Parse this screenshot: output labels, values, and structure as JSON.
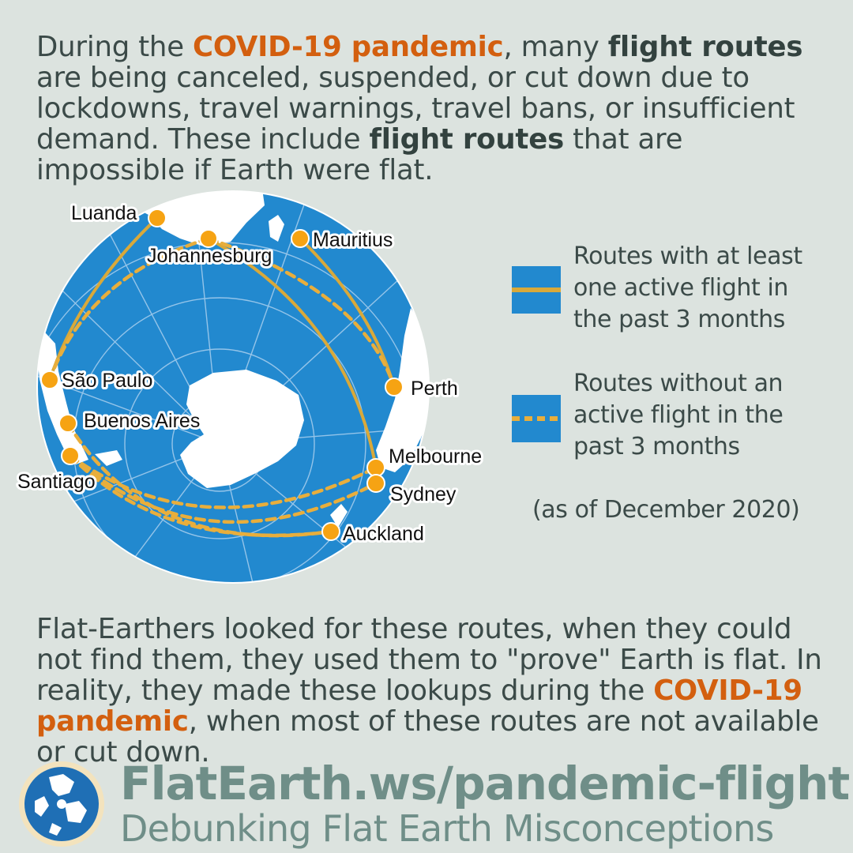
{
  "intro": {
    "t1": "During the ",
    "h1": "COVID-19 pandemic",
    "t2": ", many ",
    "b1": "flight routes",
    "t3": " are being canceled, suspended, or cut down due to lockdowns, travel warnings, travel bans, or insufficient demand. These include ",
    "b2": "flight routes",
    "t4": " that are impossible if Earth were flat."
  },
  "cities": {
    "luanda": "Luanda",
    "johannesburg": "Johannesburg",
    "mauritius": "Mauritius",
    "sao_paulo": "São Paulo",
    "buenos_aires": "Buenos Aires",
    "santiago": "Santiago",
    "perth": "Perth",
    "melbourne": "Melbourne",
    "sydney": "Sydney",
    "auckland": "Auckland"
  },
  "routes": [
    {
      "from": "Luanda",
      "to": "São Paulo",
      "status": "active"
    },
    {
      "from": "Johannesburg",
      "to": "Sydney",
      "status": "active"
    },
    {
      "from": "Mauritius",
      "to": "Perth",
      "status": "active"
    },
    {
      "from": "Johannesburg",
      "to": "São Paulo",
      "status": "inactive"
    },
    {
      "from": "Johannesburg",
      "to": "Perth",
      "status": "inactive"
    },
    {
      "from": "Santiago",
      "to": "Melbourne",
      "status": "inactive"
    },
    {
      "from": "Santiago",
      "to": "Sydney",
      "status": "inactive"
    },
    {
      "from": "Santiago",
      "to": "Auckland",
      "status": "inactive"
    },
    {
      "from": "Buenos Aires",
      "to": "Auckland",
      "status": "inactive"
    }
  ],
  "legend": {
    "active_label": "Routes with at least one active flight in the past 3 months",
    "inactive_label": "Routes without an active flight in the past 3 months",
    "as_of": "(as of December 2020)"
  },
  "outro": {
    "t1": "Flat-Earthers looked for these routes, when they could not find them, they used them to \"prove\" Earth is flat. In reality, they made these lookups during the ",
    "h1": "COVID-19 pandemic",
    "t2": ", when most of these routes are not available or cut down."
  },
  "footer": {
    "url": "FlatEarth.ws/pandemic-flight",
    "tagline": "Debunking Flat Earth Misconceptions"
  },
  "colors": {
    "background": "#dce3df",
    "ocean": "#2289cf",
    "land": "#ffffff",
    "route": "#d9a93a",
    "city_dot": "#f6a313",
    "highlight": "#d35f0f",
    "footer_text": "#6f8e88"
  }
}
